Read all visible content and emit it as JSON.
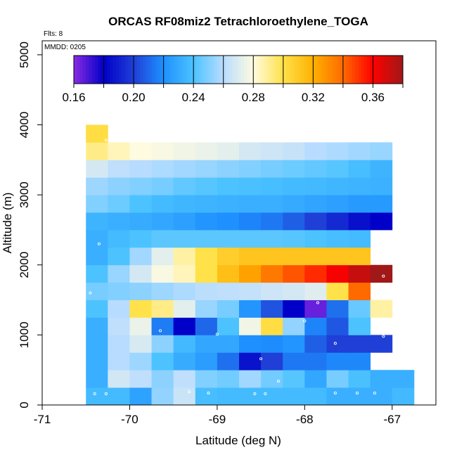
{
  "chart_data": {
    "type": "heatmap",
    "title": "ORCAS RF08miz2 Tetrachloroethylene_TOGA",
    "xlabel": "Latitude (deg N)",
    "ylabel": "Altitude (m)",
    "xlim": [
      -71,
      -66.5
    ],
    "ylim": [
      0,
      5200
    ],
    "x_ticks": [
      -71,
      -70,
      -69,
      -68,
      -67
    ],
    "x_tick_labels": [
      "-71",
      "-70",
      "-69",
      "-68",
      "-67"
    ],
    "y_ticks": [
      0,
      1000,
      2000,
      3000,
      4000,
      5000
    ],
    "y_tick_labels": [
      "0",
      "1000",
      "2000",
      "3000",
      "4000",
      "5000"
    ],
    "flts_label": "Flts: 8",
    "mmdd_label": "MMDD: 0205",
    "colorbar": {
      "min": 0.16,
      "max": 0.38,
      "tick_values": [
        0.16,
        0.2,
        0.24,
        0.28,
        0.32,
        0.36
      ],
      "tick_labels": [
        "0.16",
        "0.20",
        "0.24",
        "0.28",
        "0.32",
        "0.36"
      ],
      "stops": [
        [
          0.16,
          "#8a2be2"
        ],
        [
          0.18,
          "#0000c8"
        ],
        [
          0.2,
          "#1f3fd6"
        ],
        [
          0.22,
          "#1e90ff"
        ],
        [
          0.24,
          "#4cc3ff"
        ],
        [
          0.26,
          "#b8dcff"
        ],
        [
          0.28,
          "#fffbe0"
        ],
        [
          0.3,
          "#ffe24a"
        ],
        [
          0.32,
          "#ffb000"
        ],
        [
          0.34,
          "#ff6a00"
        ],
        [
          0.36,
          "#ff0000"
        ],
        [
          0.38,
          "#a01818"
        ]
      ]
    },
    "cell_width_deg": 0.25,
    "cell_height_m": 250,
    "rows": [
      {
        "alt": 0,
        "lon0": -70.5,
        "values": [
          0.237,
          0.237,
          0.227,
          0.253,
          0.265,
          0.238,
          0.237,
          0.237,
          0.237,
          0.237,
          0.237,
          0.232,
          0.232,
          0.232,
          0.236
        ]
      },
      {
        "alt": 250,
        "lon0": -70.5,
        "values": [
          0.232,
          0.267,
          0.262,
          0.252,
          0.262,
          0.25,
          0.247,
          0.256,
          0.247,
          0.242,
          0.229,
          0.248,
          0.239,
          0.232,
          0.232
        ]
      },
      {
        "alt": 500,
        "lon0": -70.5,
        "values": [
          0.232,
          0.26,
          0.255,
          0.24,
          0.231,
          0.225,
          0.212,
          0.186,
          0.2,
          0.214,
          0.214,
          0.218,
          0.218
        ]
      },
      {
        "alt": 750,
        "lon0": -70.5,
        "values": [
          0.232,
          0.26,
          0.269,
          0.252,
          0.236,
          0.229,
          0.229,
          0.22,
          0.219,
          0.222,
          0.208,
          0.2,
          0.2,
          0.2
        ]
      },
      {
        "alt": 1000,
        "lon0": -70.5,
        "values": [
          0.232,
          0.262,
          0.274,
          0.215,
          0.18,
          0.21,
          0.24,
          0.276,
          0.302,
          0.253,
          0.217,
          0.206,
          0.24
        ]
      },
      {
        "alt": 1250,
        "lon0": -70.5,
        "values": [
          0.24,
          0.26,
          0.3,
          0.292,
          0.272,
          0.254,
          0.248,
          0.222,
          0.205,
          0.18,
          0.165,
          0.212,
          0.245,
          0.288
        ]
      },
      {
        "alt": 1500,
        "lon0": -70.5,
        "values": [
          0.248,
          0.25,
          0.252,
          0.255,
          0.258,
          0.261,
          0.262,
          0.263,
          0.266,
          0.268,
          0.271,
          0.3,
          0.34
        ]
      },
      {
        "alt": 1750,
        "lon0": -70.5,
        "values": [
          0.24,
          0.254,
          0.268,
          0.278,
          0.285,
          0.3,
          0.314,
          0.324,
          0.336,
          0.344,
          0.352,
          0.362,
          0.372,
          0.382
        ]
      },
      {
        "alt": 2000,
        "lon0": -70.5,
        "values": [
          0.232,
          0.24,
          0.256,
          0.272,
          0.288,
          0.3,
          0.308,
          0.312,
          0.312,
          0.312,
          0.312,
          0.312,
          0.312
        ]
      },
      {
        "alt": 2250,
        "lon0": -70.5,
        "values": [
          0.232,
          0.237,
          0.24,
          0.243,
          0.243,
          0.243,
          0.243,
          0.243,
          0.243,
          0.242,
          0.24,
          0.238,
          0.237
        ]
      },
      {
        "alt": 2500,
        "lon0": -70.5,
        "values": [
          0.234,
          0.232,
          0.231,
          0.229,
          0.226,
          0.222,
          0.22,
          0.217,
          0.214,
          0.208,
          0.2,
          0.193,
          0.185,
          0.18
        ]
      },
      {
        "alt": 2750,
        "lon0": -70.5,
        "values": [
          0.25,
          0.246,
          0.24,
          0.237,
          0.235,
          0.234,
          0.233,
          0.232,
          0.232,
          0.23,
          0.228,
          0.226,
          0.224,
          0.224
        ]
      },
      {
        "alt": 3000,
        "lon0": -70.5,
        "values": [
          0.255,
          0.252,
          0.25,
          0.248,
          0.244,
          0.242,
          0.24,
          0.239,
          0.238,
          0.237,
          0.236,
          0.235,
          0.234,
          0.233
        ]
      },
      {
        "alt": 3250,
        "lon0": -70.5,
        "values": [
          0.268,
          0.262,
          0.26,
          0.258,
          0.256,
          0.254,
          0.252,
          0.25,
          0.248,
          0.246,
          0.244,
          0.242,
          0.238,
          0.234
        ]
      },
      {
        "alt": 3500,
        "lon0": -70.5,
        "values": [
          0.292,
          0.285,
          0.28,
          0.278,
          0.276,
          0.274,
          0.272,
          0.268,
          0.266,
          0.264,
          0.26,
          0.258,
          0.256,
          0.254
        ]
      },
      {
        "alt": 3750,
        "lon0": -70.5,
        "values": [
          0.302
        ]
      }
    ],
    "points": [
      [
        -70.4,
        160
      ],
      [
        -70.27,
        160
      ],
      [
        -69.32,
        190
      ],
      [
        -69.1,
        170
      ],
      [
        -68.57,
        160
      ],
      [
        -68.45,
        160
      ],
      [
        -68.3,
        340
      ],
      [
        -67.65,
        170
      ],
      [
        -67.4,
        170
      ],
      [
        -67.2,
        170
      ],
      [
        -68.5,
        660
      ],
      [
        -68.0,
        1200
      ],
      [
        -67.85,
        1460
      ],
      [
        -67.65,
        880
      ],
      [
        -67.1,
        980
      ],
      [
        -69.0,
        1010
      ],
      [
        -69.65,
        1060
      ],
      [
        -70.45,
        1600
      ],
      [
        -70.35,
        2300
      ],
      [
        -67.1,
        1840
      ],
      [
        -66.95,
        2720
      ],
      [
        -66.75,
        3600
      ],
      [
        -70.27,
        3780
      ]
    ]
  }
}
